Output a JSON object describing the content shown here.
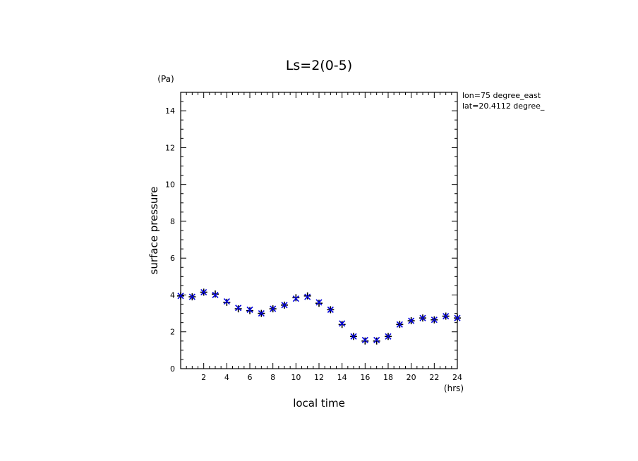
{
  "chart_data": {
    "type": "scatter",
    "title": "Ls=2(0-5)",
    "xlabel": "local time",
    "ylabel": "surface pressure",
    "xunit": "(hrs)",
    "yunit": "(Pa)",
    "xlim": [
      0,
      24
    ],
    "ylim": [
      0,
      15
    ],
    "xticks": [
      "2",
      "4",
      "6",
      "8",
      "10",
      "12",
      "14",
      "16",
      "18",
      "20",
      "22",
      "24"
    ],
    "yticks": [
      "0",
      "2",
      "4",
      "6",
      "8",
      "10",
      "12",
      "14"
    ],
    "annotations": [
      "lon=75 degree_east",
      "lat=20.4112 degree_"
    ],
    "grid": false,
    "marker_colors": {
      "plus": "#000000",
      "cross": "#0000dd"
    },
    "x": [
      0,
      1,
      2,
      3,
      4,
      5,
      6,
      7,
      8,
      9,
      10,
      11,
      12,
      13,
      14,
      15,
      16,
      17,
      18,
      19,
      20,
      21,
      22,
      23,
      24
    ],
    "series": [
      {
        "marker": "plus",
        "values": [
          3.95,
          3.9,
          4.15,
          4.05,
          3.6,
          3.25,
          3.15,
          3.0,
          3.25,
          3.45,
          3.85,
          3.95,
          3.55,
          3.2,
          2.4,
          1.75,
          1.5,
          1.5,
          1.75,
          2.4,
          2.6,
          2.75,
          2.65,
          2.85,
          2.75
        ]
      },
      {
        "marker": "cross",
        "values": [
          3.95,
          3.9,
          4.15,
          4.0,
          3.65,
          3.3,
          3.2,
          3.0,
          3.25,
          3.45,
          3.8,
          3.9,
          3.6,
          3.2,
          2.45,
          1.75,
          1.55,
          1.55,
          1.75,
          2.4,
          2.6,
          2.75,
          2.65,
          2.85,
          2.75
        ]
      }
    ]
  }
}
